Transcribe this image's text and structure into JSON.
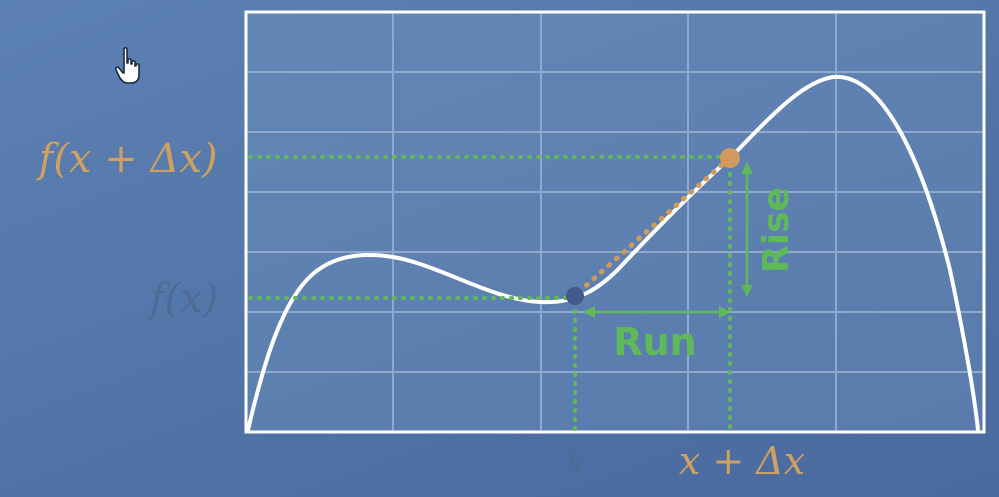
{
  "labels": {
    "f_x_plus_dx": "f(x + Δx)",
    "f_x": "f(x)",
    "x": "x",
    "x_plus_dx": "x + Δx",
    "run": "Run",
    "rise": "Rise"
  },
  "colors": {
    "background": "#5577aa",
    "grid": "#8fa9cb",
    "frame": "#ffffff",
    "curve": "#ffffff",
    "guide_green": "#5fb95a",
    "secant_orange": "#cf9a5c",
    "point_x": "#405b8c",
    "point_x_plus_dx": "#d19a5c",
    "label_gold": "#cfa062",
    "label_dim": "#4f6a93"
  },
  "icons": {
    "cursor": "hand-pointer-icon"
  }
}
